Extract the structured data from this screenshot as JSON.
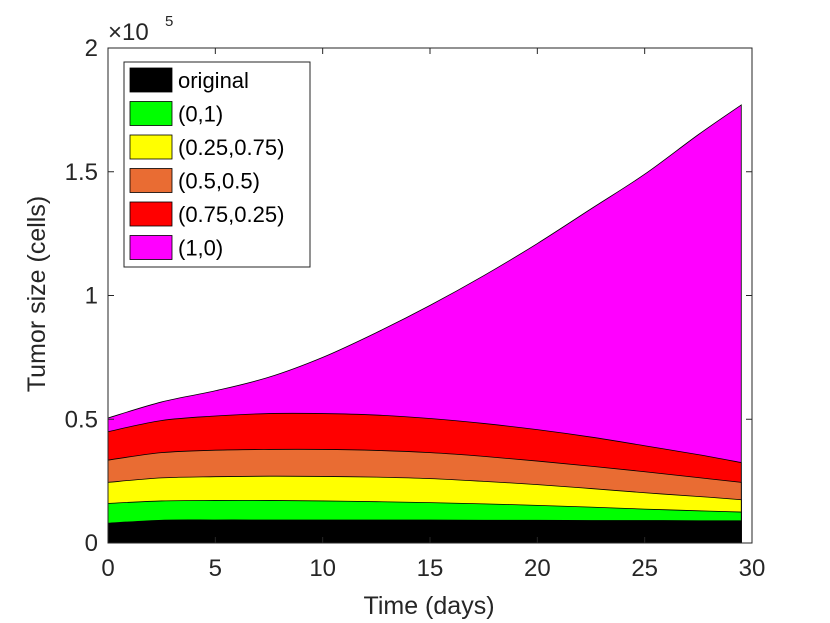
{
  "chart_data": {
    "type": "area",
    "stacked": true,
    "xlabel": "Time (days)",
    "ylabel": "Tumor size (cells)",
    "xlim": [
      0,
      30
    ],
    "ylim": [
      0,
      200000
    ],
    "x_ticks": [
      "0",
      "5",
      "10",
      "15",
      "20",
      "25",
      "30"
    ],
    "y_ticks": [
      "0",
      "0.5",
      "1",
      "1.5",
      "2"
    ],
    "y_multiplier": {
      "base": "×10",
      "exponent": "5"
    },
    "grid": false,
    "legend_position": "top-left",
    "x": [
      0,
      2.5,
      5,
      7.5,
      10,
      12.5,
      15,
      17.5,
      20,
      22.5,
      25,
      27.5,
      29.5
    ],
    "series": [
      {
        "name": "original",
        "color": "#000000",
        "values": [
          8000,
          9200,
          9300,
          9300,
          9300,
          9300,
          9300,
          9200,
          9200,
          9100,
          9100,
          9000,
          9000
        ]
      },
      {
        "name": "(0,1)",
        "color": "#00ff00",
        "values": [
          16000,
          17000,
          17200,
          17200,
          17000,
          16700,
          16300,
          15800,
          15200,
          14500,
          13700,
          13000,
          12500
        ]
      },
      {
        "name": "(0.25,0.75)",
        "color": "#ffff00",
        "values": [
          24500,
          26300,
          26800,
          27000,
          26900,
          26600,
          26000,
          24900,
          23600,
          22000,
          20300,
          18800,
          17500
        ]
      },
      {
        "name": "(0.5,0.5)",
        "color": "#e96c33",
        "values": [
          33500,
          36500,
          37500,
          37800,
          37800,
          37400,
          36500,
          35000,
          33100,
          31000,
          28800,
          26400,
          24500
        ]
      },
      {
        "name": "(0.75,0.25)",
        "color": "#ff0000",
        "values": [
          45000,
          49500,
          51300,
          52300,
          52300,
          51700,
          50300,
          48300,
          45800,
          42800,
          39300,
          35700,
          32500
        ]
      },
      {
        "name": "(1,0)",
        "color": "#ff00ff",
        "values": [
          50500,
          57000,
          61500,
          67000,
          75000,
          85000,
          96000,
          108000,
          121000,
          135000,
          149000,
          165000,
          177000
        ]
      }
    ]
  }
}
